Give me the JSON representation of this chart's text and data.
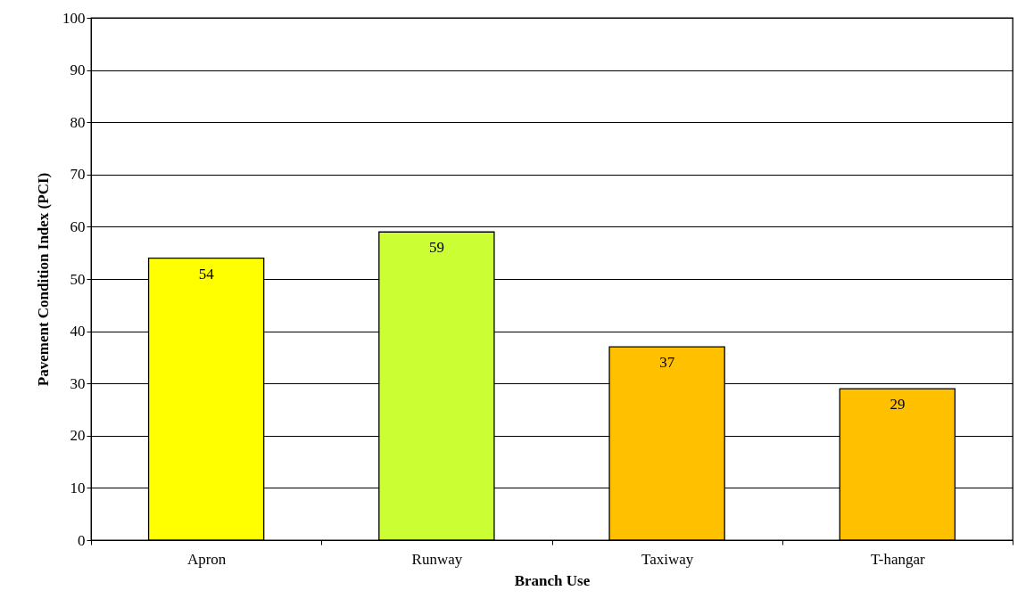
{
  "chart_data": {
    "type": "bar",
    "xlabel": "Branch Use",
    "ylabel": "Pavement Condition Index (PCI)",
    "categories": [
      "Apron",
      "Runway",
      "Taxiway",
      "T-hangar"
    ],
    "values": [
      54,
      59,
      37,
      29
    ],
    "colors": [
      "#ffff00",
      "#ccff33",
      "#ffc000",
      "#ffc000"
    ],
    "ylim": [
      0,
      100
    ],
    "yticks": [
      0,
      10,
      20,
      30,
      40,
      50,
      60,
      70,
      80,
      90,
      100
    ],
    "grid": true,
    "data_labels": true
  }
}
